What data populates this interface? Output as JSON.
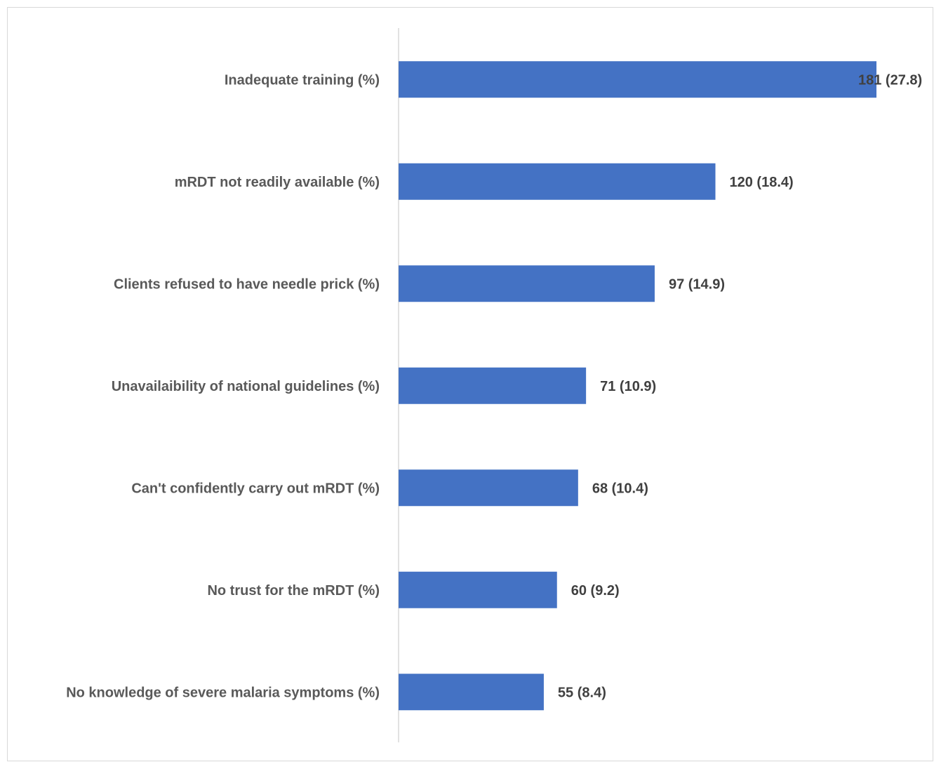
{
  "chart_data": {
    "type": "bar",
    "orientation": "horizontal",
    "title": "",
    "xlabel": "",
    "ylabel": "",
    "categories": [
      "Inadequate training (%)",
      "mRDT not readily available (%)",
      "Clients refused to have needle prick (%)",
      "Unavailaibility of national guidelines (%)",
      "Can't confidently carry out mRDT (%)",
      "No trust for the mRDT (%)",
      "No knowledge of severe malaria symptoms (%)"
    ],
    "values": [
      181,
      120,
      97,
      71,
      68,
      60,
      55
    ],
    "percentages": [
      27.8,
      18.4,
      14.9,
      10.9,
      10.4,
      9.2,
      8.4
    ],
    "data_labels": [
      "181 (27.8)",
      "120 (18.4)",
      "97 (14.9)",
      "71 (10.9)",
      "68 (10.4)",
      "60 (9.2)",
      "55 (8.4)"
    ],
    "xlim": [
      0,
      181
    ],
    "grid": false,
    "legend": "none",
    "bar_color": "#4472c4",
    "axis_color": "#d9d9d9"
  }
}
